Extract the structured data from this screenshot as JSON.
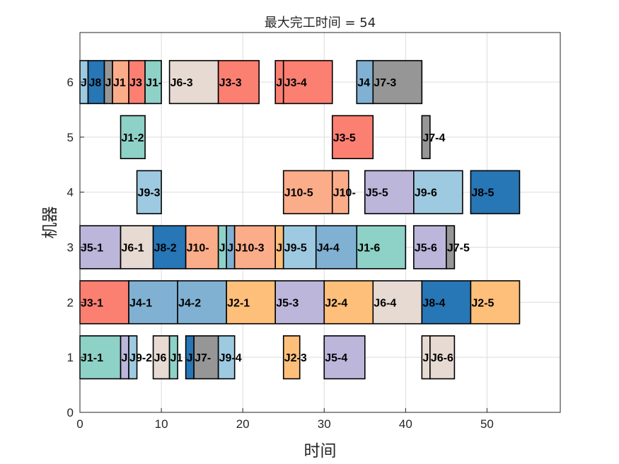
{
  "chart_data": {
    "type": "gantt",
    "title": "最大完工时间 = 54",
    "xlabel": "时间",
    "ylabel": "机器",
    "xlim": [
      0,
      59
    ],
    "ylim": [
      0,
      6.9
    ],
    "xticks": [
      "0",
      "10",
      "20",
      "30",
      "40",
      "50"
    ],
    "yticks": [
      "0",
      "1",
      "2",
      "3",
      "4",
      "5",
      "6"
    ],
    "grid": true,
    "job_colors": {
      "J1": "#8ed1c6",
      "J2": "#fdbf7a",
      "J3": "#fb8072",
      "J4": "#80b1d3",
      "J5": "#bcb6db",
      "J6": "#e6dad2",
      "J7": "#969696",
      "J8": "#2776b6",
      "J9": "#9ecae1",
      "J10": "#fbad8a"
    },
    "operations": [
      {
        "machine": 1,
        "start": 0,
        "end": 5,
        "job": "J1",
        "label": "J1-1"
      },
      {
        "machine": 1,
        "start": 5,
        "end": 6,
        "job": "J5",
        "label": "J"
      },
      {
        "machine": 1,
        "start": 6,
        "end": 7,
        "job": "J9",
        "label": "J9-2"
      },
      {
        "machine": 1,
        "start": 9,
        "end": 11,
        "job": "J6",
        "label": "J6"
      },
      {
        "machine": 1,
        "start": 11,
        "end": 12,
        "job": "J1",
        "label": "J1"
      },
      {
        "machine": 1,
        "start": 13,
        "end": 14,
        "job": "J8",
        "label": "J"
      },
      {
        "machine": 1,
        "start": 14,
        "end": 17,
        "job": "J7",
        "label": "J7-"
      },
      {
        "machine": 1,
        "start": 17,
        "end": 19,
        "job": "J9",
        "label": "J9-4"
      },
      {
        "machine": 1,
        "start": 25,
        "end": 27,
        "job": "J2",
        "label": "J2-3"
      },
      {
        "machine": 1,
        "start": 30,
        "end": 35,
        "job": "J5",
        "label": "J5-4"
      },
      {
        "machine": 1,
        "start": 42,
        "end": 43,
        "job": "J6",
        "label": "J"
      },
      {
        "machine": 1,
        "start": 43,
        "end": 46,
        "job": "J6",
        "label": "J6-6"
      },
      {
        "machine": 2,
        "start": 0,
        "end": 6,
        "job": "J3",
        "label": "J3-1"
      },
      {
        "machine": 2,
        "start": 6,
        "end": 12,
        "job": "J4",
        "label": "J4-1"
      },
      {
        "machine": 2,
        "start": 12,
        "end": 18,
        "job": "J4",
        "label": "J4-2"
      },
      {
        "machine": 2,
        "start": 18,
        "end": 24,
        "job": "J2",
        "label": "J2-1"
      },
      {
        "machine": 2,
        "start": 24,
        "end": 30,
        "job": "J5",
        "label": "J5-3"
      },
      {
        "machine": 2,
        "start": 30,
        "end": 36,
        "job": "J2",
        "label": "J2-4"
      },
      {
        "machine": 2,
        "start": 36,
        "end": 42,
        "job": "J6",
        "label": "J6-4"
      },
      {
        "machine": 2,
        "start": 42,
        "end": 48,
        "job": "J8",
        "label": "J8-4"
      },
      {
        "machine": 2,
        "start": 48,
        "end": 54,
        "job": "J2",
        "label": "J2-5"
      },
      {
        "machine": 3,
        "start": 0,
        "end": 5,
        "job": "J5",
        "label": "J5-1"
      },
      {
        "machine": 3,
        "start": 5,
        "end": 9,
        "job": "J6",
        "label": "J6-1"
      },
      {
        "machine": 3,
        "start": 9,
        "end": 13,
        "job": "J8",
        "label": "J8-2"
      },
      {
        "machine": 3,
        "start": 13,
        "end": 17,
        "job": "J10",
        "label": "J10-"
      },
      {
        "machine": 3,
        "start": 17,
        "end": 18,
        "job": "J1",
        "label": "J"
      },
      {
        "machine": 3,
        "start": 18,
        "end": 19,
        "job": "J4",
        "label": "J"
      },
      {
        "machine": 3,
        "start": 19,
        "end": 24,
        "job": "J10",
        "label": "J10-3"
      },
      {
        "machine": 3,
        "start": 24,
        "end": 25,
        "job": "J2",
        "label": "J"
      },
      {
        "machine": 3,
        "start": 25,
        "end": 29,
        "job": "J9",
        "label": "J9-5"
      },
      {
        "machine": 3,
        "start": 29,
        "end": 34,
        "job": "J4",
        "label": "J4-4"
      },
      {
        "machine": 3,
        "start": 34,
        "end": 40,
        "job": "J1",
        "label": "J1-6"
      },
      {
        "machine": 3,
        "start": 41,
        "end": 45,
        "job": "J5",
        "label": "J5-6"
      },
      {
        "machine": 3,
        "start": 45,
        "end": 46,
        "job": "J7",
        "label": "J7-5"
      },
      {
        "machine": 4,
        "start": 7,
        "end": 10,
        "job": "J9",
        "label": "J9-3"
      },
      {
        "machine": 4,
        "start": 25,
        "end": 31,
        "job": "J10",
        "label": "J10-5"
      },
      {
        "machine": 4,
        "start": 31,
        "end": 33,
        "job": "J10",
        "label": "J10-"
      },
      {
        "machine": 4,
        "start": 35,
        "end": 41,
        "job": "J5",
        "label": "J5-5"
      },
      {
        "machine": 4,
        "start": 41,
        "end": 47,
        "job": "J9",
        "label": "J9-6"
      },
      {
        "machine": 4,
        "start": 48,
        "end": 54,
        "job": "J8",
        "label": "J8-5"
      },
      {
        "machine": 5,
        "start": 5,
        "end": 8,
        "job": "J1",
        "label": "J1-2"
      },
      {
        "machine": 5,
        "start": 31,
        "end": 36,
        "job": "J3",
        "label": "J3-5"
      },
      {
        "machine": 5,
        "start": 42,
        "end": 43,
        "job": "J7",
        "label": "J7-4"
      },
      {
        "machine": 6,
        "start": 0,
        "end": 1,
        "job": "J9",
        "label": "J"
      },
      {
        "machine": 6,
        "start": 1,
        "end": 3,
        "job": "J8",
        "label": "J8"
      },
      {
        "machine": 6,
        "start": 3,
        "end": 4,
        "job": "J7",
        "label": "J"
      },
      {
        "machine": 6,
        "start": 4,
        "end": 6,
        "job": "J10",
        "label": "J1"
      },
      {
        "machine": 6,
        "start": 6,
        "end": 8,
        "job": "J3",
        "label": "J3"
      },
      {
        "machine": 6,
        "start": 8,
        "end": 10,
        "job": "J1",
        "label": "J1-"
      },
      {
        "machine": 6,
        "start": 11,
        "end": 17,
        "job": "J6",
        "label": "J6-3"
      },
      {
        "machine": 6,
        "start": 17,
        "end": 22,
        "job": "J3",
        "label": "J3-3"
      },
      {
        "machine": 6,
        "start": 24,
        "end": 25,
        "job": "J3",
        "label": "J"
      },
      {
        "machine": 6,
        "start": 25,
        "end": 31,
        "job": "J3",
        "label": "J3-4"
      },
      {
        "machine": 6,
        "start": 34,
        "end": 36,
        "job": "J4",
        "label": "J4"
      },
      {
        "machine": 6,
        "start": 36,
        "end": 42,
        "job": "J7",
        "label": "J7-3"
      }
    ]
  }
}
